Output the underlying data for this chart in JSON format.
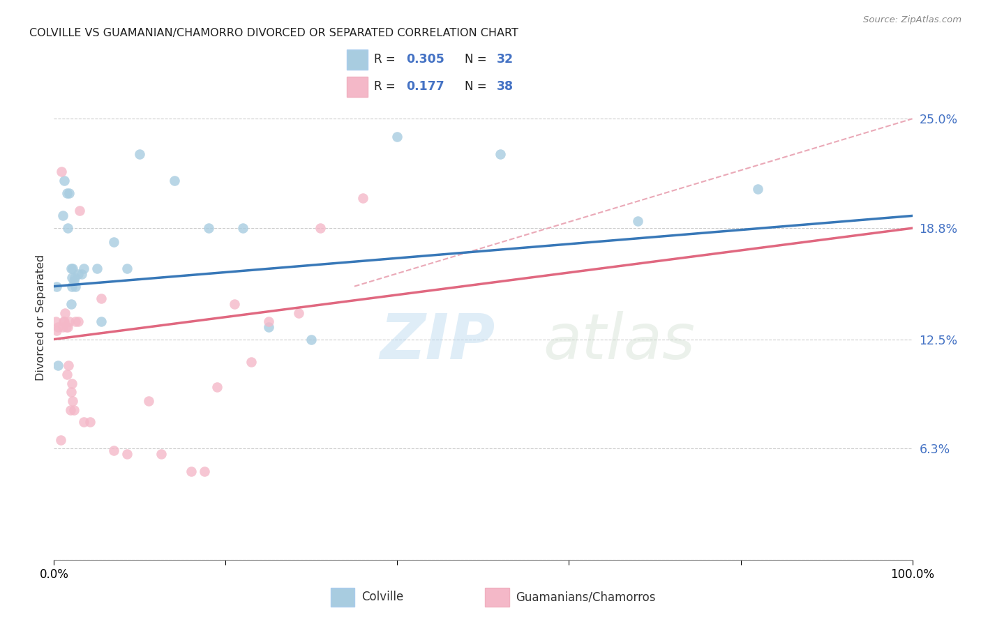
{
  "title": "COLVILLE VS GUAMANIAN/CHAMORRO DIVORCED OR SEPARATED CORRELATION CHART",
  "source": "Source: ZipAtlas.com",
  "ylabel": "Divorced or Separated",
  "watermark_zip": "ZIP",
  "watermark_atlas": "atlas",
  "r1": "0.305",
  "n1": "32",
  "r2": "0.177",
  "n2": "38",
  "legend_label1": "Colville",
  "legend_label2": "Guamanians/Chamorros",
  "blue_scatter": "#a8cce0",
  "pink_scatter": "#f4b8c8",
  "blue_line": "#3878b8",
  "pink_line": "#e06880",
  "dashed_color": "#e8a0b0",
  "tick_color": "#4472c4",
  "text_color": "#333333",
  "colville_x": [
    0.3,
    0.5,
    1.0,
    1.2,
    1.5,
    1.8,
    2.0,
    2.1,
    2.2,
    2.3,
    2.4,
    2.5,
    2.8,
    3.2,
    3.5,
    5.0,
    7.0,
    8.5,
    10.0,
    14.0,
    18.0,
    22.0,
    25.0,
    30.0,
    40.0,
    52.0,
    68.0,
    82.0,
    2.0,
    2.1,
    5.5,
    1.6
  ],
  "colville_y": [
    15.5,
    11.0,
    19.5,
    21.5,
    20.8,
    20.8,
    16.5,
    16.0,
    16.5,
    15.8,
    16.0,
    15.5,
    16.2,
    16.2,
    16.5,
    16.5,
    18.0,
    16.5,
    23.0,
    21.5,
    18.8,
    18.8,
    13.2,
    12.5,
    24.0,
    23.0,
    19.2,
    21.0,
    14.5,
    15.5,
    13.5,
    18.8
  ],
  "guam_x": [
    0.2,
    0.3,
    0.5,
    0.8,
    0.9,
    1.0,
    1.1,
    1.2,
    1.3,
    1.4,
    1.5,
    1.6,
    1.7,
    1.8,
    1.9,
    2.0,
    2.1,
    2.2,
    2.3,
    2.5,
    2.8,
    3.0,
    3.5,
    4.2,
    5.5,
    7.0,
    8.5,
    11.0,
    12.5,
    16.0,
    17.5,
    19.0,
    21.0,
    23.0,
    25.0,
    28.5,
    31.0,
    36.0
  ],
  "guam_y": [
    13.5,
    13.0,
    13.2,
    6.8,
    22.0,
    13.2,
    13.5,
    13.5,
    14.0,
    13.2,
    10.5,
    13.2,
    11.0,
    13.5,
    8.5,
    9.5,
    10.0,
    9.0,
    8.5,
    13.5,
    13.5,
    19.8,
    7.8,
    7.8,
    14.8,
    6.2,
    6.0,
    9.0,
    6.0,
    5.0,
    5.0,
    9.8,
    14.5,
    11.2,
    13.5,
    14.0,
    18.8,
    20.5
  ],
  "xmin": 0.0,
  "xmax": 100.0,
  "ymin": 0.0,
  "ymax": 27.5,
  "ytick_vals": [
    6.3,
    12.5,
    18.8,
    25.0
  ],
  "ytick_labels": [
    "6.3%",
    "12.5%",
    "18.8%",
    "25.0%"
  ],
  "grid_color": "#cccccc"
}
